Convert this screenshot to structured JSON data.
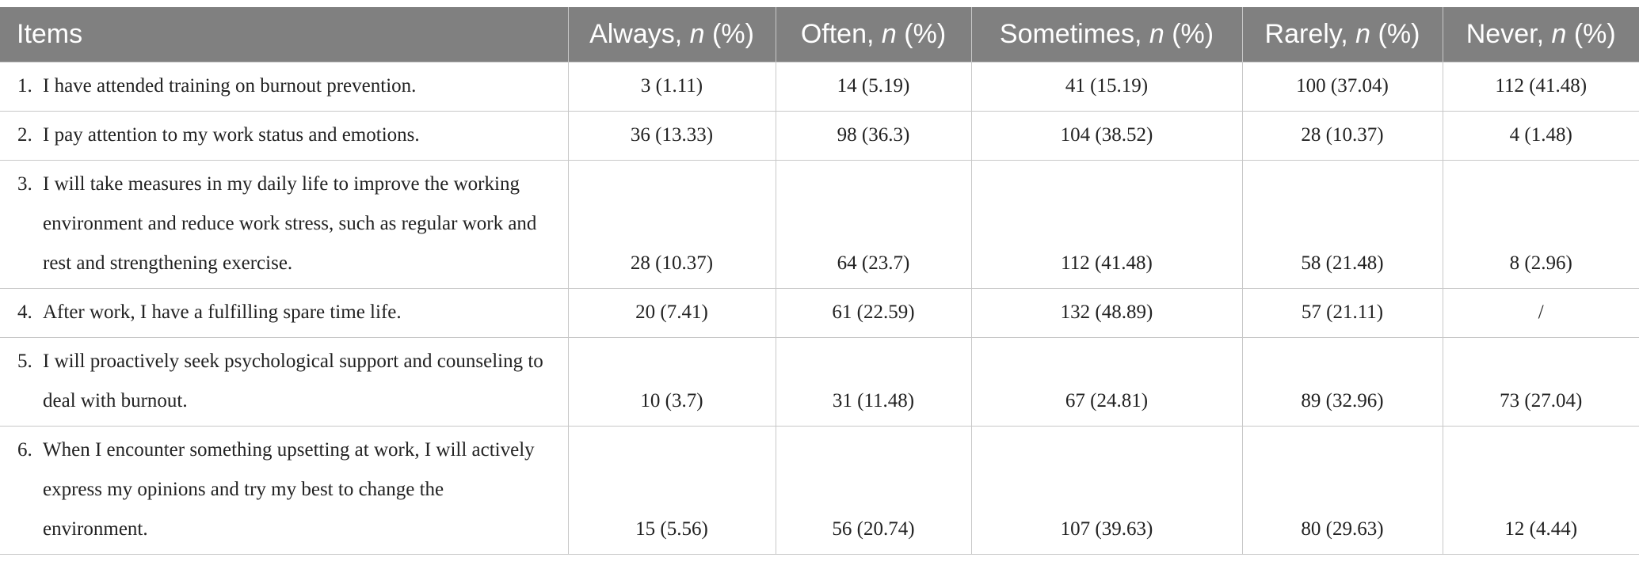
{
  "table": {
    "headers": [
      {
        "text": "Items"
      },
      {
        "text": "Always,",
        "italic": "n",
        "after": "(%)"
      },
      {
        "text": "Often,",
        "italic": "n",
        "after": "(%)"
      },
      {
        "text": "Sometimes,",
        "italic": "n",
        "after": "(%)"
      },
      {
        "text": "Rarely,",
        "italic": "n",
        "after": "(%)"
      },
      {
        "text": "Never,",
        "italic": "n",
        "after": "(%)"
      }
    ],
    "rows": [
      {
        "number": "1.",
        "item": "I have attended training on burnout prevention.",
        "cells": [
          "3 (1.11)",
          "14 (5.19)",
          "41 (15.19)",
          "100 (37.04)",
          "112 (41.48)"
        ]
      },
      {
        "number": "2.",
        "item": "I pay attention to my work status and emotions.",
        "cells": [
          "36 (13.33)",
          "98 (36.3)",
          "104 (38.52)",
          "28 (10.37)",
          "4 (1.48)"
        ]
      },
      {
        "number": "3.",
        "item": "I will take measures in my daily life to improve the working environment and reduce work stress, such as regular work and rest and strengthening exercise.",
        "cells": [
          "28 (10.37)",
          "64 (23.7)",
          "112 (41.48)",
          "58 (21.48)",
          "8 (2.96)"
        ]
      },
      {
        "number": "4.",
        "item": "After work, I have a fulfilling spare time life.",
        "cells": [
          "20 (7.41)",
          "61 (22.59)",
          "132 (48.89)",
          "57 (21.11)",
          "/"
        ]
      },
      {
        "number": "5.",
        "item": "I will proactively seek psychological support and counseling to deal with burnout.",
        "cells": [
          "10 (3.7)",
          "31 (11.48)",
          "67 (24.81)",
          "89 (32.96)",
          "73 (27.04)"
        ]
      },
      {
        "number": "6.",
        "item": "When I encounter something upsetting at work, I will actively express my opinions and try my best to change the environment.",
        "cells": [
          "15 (5.56)",
          "56 (20.74)",
          "107 (39.63)",
          "80 (29.63)",
          "12 (4.44)"
        ]
      }
    ]
  }
}
